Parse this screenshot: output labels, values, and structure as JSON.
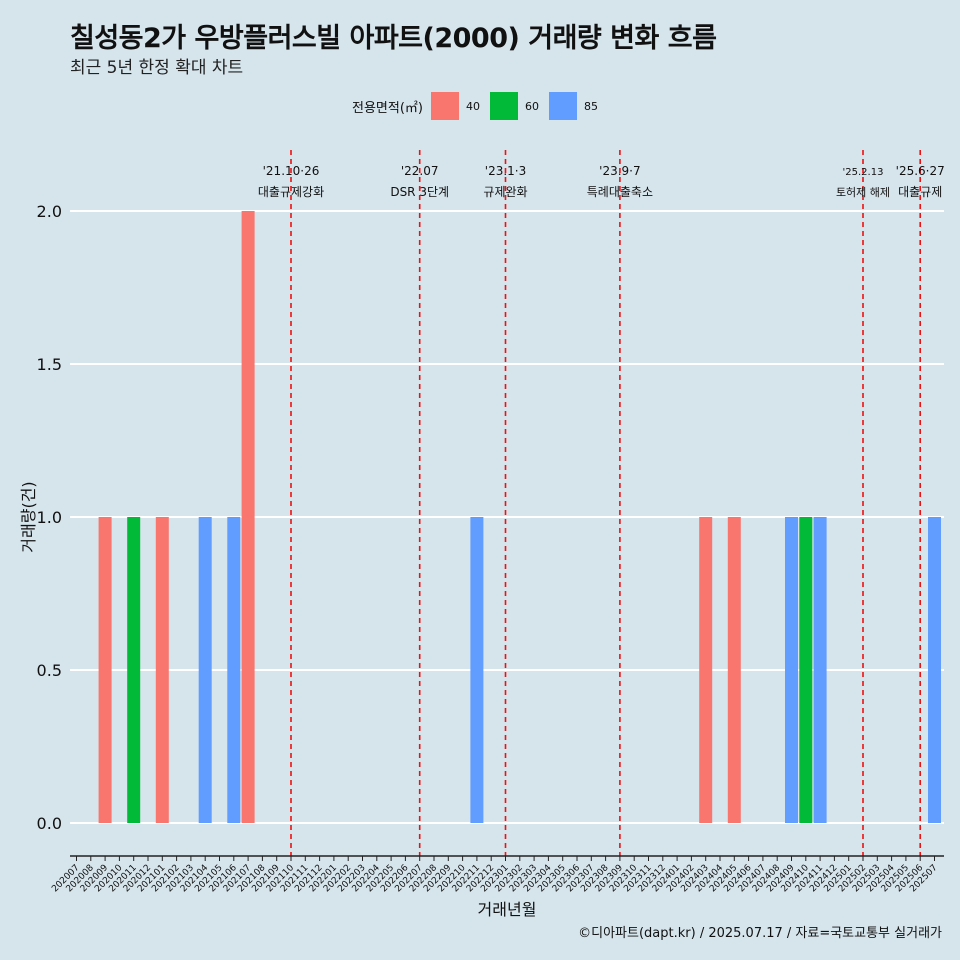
{
  "title": "칠성동2가 우방플러스빌 아파트(2000) 거래량 변화 흐름",
  "subtitle": "최근 5년 한정 확대 차트",
  "caption": "©디아파트(dapt.kr) / 2025.07.17 / 자료=국토교통부 실거래가",
  "colors": {
    "40": "#f8766d",
    "60": "#00ba38",
    "85": "#619cff",
    "event_line": "#ee1111",
    "background": "#d6e4ec",
    "grid": "#ffffff"
  },
  "chart_data": {
    "type": "bar",
    "xlabel": "거래년월",
    "ylabel": "거래량(건)",
    "ylim": [
      0,
      2
    ],
    "yticks": [
      "0.0",
      "0.5",
      "1.0",
      "1.5",
      "2.0"
    ],
    "legend_title": "전용면적(㎡)",
    "legend_position": "top",
    "categories": [
      "202007",
      "202008",
      "202009",
      "202010",
      "202011",
      "202012",
      "202101",
      "202102",
      "202103",
      "202104",
      "202105",
      "202106",
      "202107",
      "202108",
      "202109",
      "202110",
      "202111",
      "202112",
      "202201",
      "202202",
      "202203",
      "202204",
      "202205",
      "202206",
      "202207",
      "202208",
      "202209",
      "202210",
      "202211",
      "202212",
      "202301",
      "202302",
      "202303",
      "202304",
      "202305",
      "202306",
      "202307",
      "202308",
      "202309",
      "202310",
      "202311",
      "202312",
      "202401",
      "202402",
      "202403",
      "202404",
      "202405",
      "202406",
      "202407",
      "202408",
      "202409",
      "202410",
      "202411",
      "202412",
      "202501",
      "202502",
      "202503",
      "202504",
      "202505",
      "202506",
      "202507"
    ],
    "series": [
      {
        "name": "40",
        "values": [
          {
            "x": "202009",
            "y": 1
          },
          {
            "x": "202101",
            "y": 1
          },
          {
            "x": "202107",
            "y": 2
          },
          {
            "x": "202403",
            "y": 1
          },
          {
            "x": "202405",
            "y": 1
          }
        ]
      },
      {
        "name": "60",
        "values": [
          {
            "x": "202011",
            "y": 1
          },
          {
            "x": "202410",
            "y": 1
          }
        ]
      },
      {
        "name": "85",
        "values": [
          {
            "x": "202104",
            "y": 1
          },
          {
            "x": "202106",
            "y": 1
          },
          {
            "x": "202211",
            "y": 1
          },
          {
            "x": "202409",
            "y": 1
          },
          {
            "x": "202411",
            "y": 1
          },
          {
            "x": "202507",
            "y": 1
          }
        ]
      }
    ],
    "events": [
      {
        "date": "'21.10·26",
        "label": "대출규제강화",
        "x": "202110"
      },
      {
        "date": "'22.07",
        "label": "DSR 3단계",
        "x": "202207"
      },
      {
        "date": "'23.1·3",
        "label": "규제완화",
        "x": "202301"
      },
      {
        "date": "'23.9·7",
        "label": "특례대출축소",
        "x": "202309"
      },
      {
        "date": "'25.2.13",
        "label": "토허제 해제",
        "x": "202502"
      },
      {
        "date": "'25.6·27",
        "label": "대출규제",
        "x": "202506"
      }
    ]
  }
}
